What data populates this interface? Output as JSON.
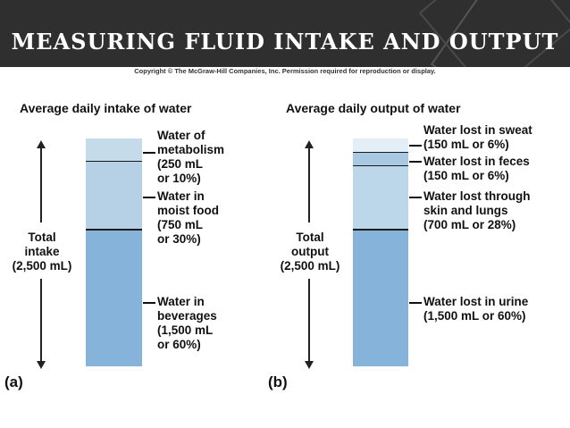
{
  "slide": {
    "title": "MEASURING FLUID INTAKE AND OUTPUT"
  },
  "copyright": "Copyright © The McGraw-Hill Companies, Inc. Permission required for reproduction or display.",
  "intake": {
    "heading": "Average daily intake of water",
    "total": [
      "Total",
      "intake",
      "(2,500 mL)"
    ],
    "panel": "(a)",
    "segments": [
      {
        "lines": [
          "Water of",
          "metabolism",
          "(250 mL",
          "or 10%)"
        ],
        "share": 10,
        "color": "#c5dbe9"
      },
      {
        "lines": [
          "Water in",
          "moist food",
          "(750 mL",
          "or 30%)"
        ],
        "share": 30,
        "color": "#b6d1e6"
      },
      {
        "lines": [
          "Water in",
          "beverages",
          "(1,500 mL",
          "or 60%)"
        ],
        "share": 60,
        "color": "#86b3d9"
      }
    ]
  },
  "output": {
    "heading": "Average daily output of water",
    "total": [
      "Total",
      "output",
      "(2,500 mL)"
    ],
    "panel": "(b)",
    "segments": [
      {
        "lines": [
          "Water lost in sweat",
          "(150 mL or 6%)"
        ],
        "share": 6,
        "color": "#e3eef6"
      },
      {
        "lines": [
          "Water lost in feces",
          "(150 mL or 6%)"
        ],
        "share": 6,
        "color": "#a9c9e3"
      },
      {
        "lines": [
          "Water lost through",
          "skin and lungs",
          "(700 mL or 28%)"
        ],
        "share": 28,
        "color": "#bcd6ea"
      },
      {
        "lines": [
          "Water lost in urine",
          "(1,500 mL or 60%)"
        ],
        "share": 60,
        "color": "#86b3d9"
      }
    ]
  }
}
